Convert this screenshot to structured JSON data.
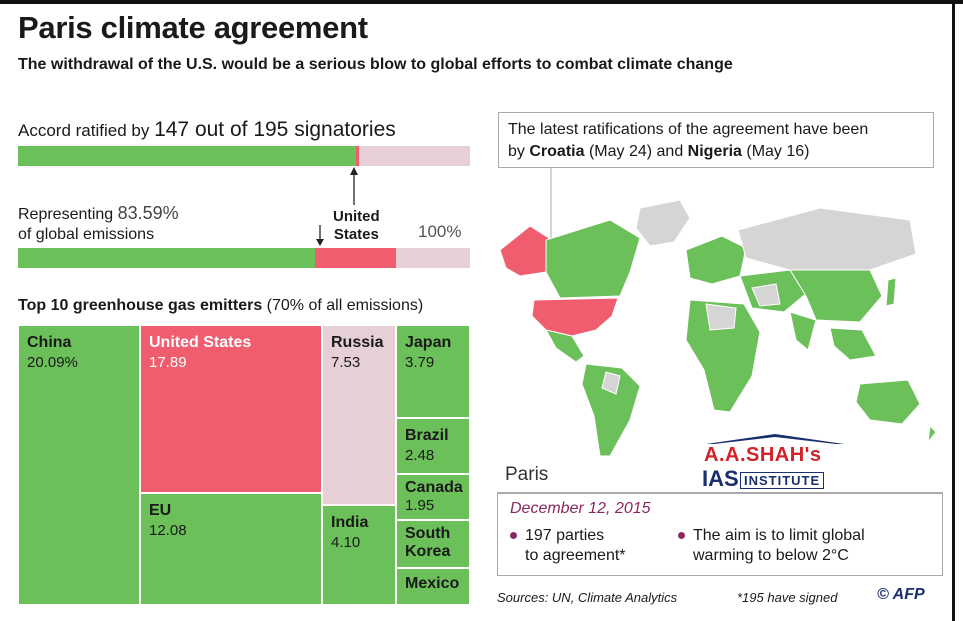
{
  "title": "Paris climate agreement",
  "subtitle": "The withdrawal of the U.S. would be a serious blow to global efforts to combat climate change",
  "accord": {
    "prefix": "Accord ratified by",
    "value": "147 out of 195 signatories",
    "ratified": 147,
    "total": 195
  },
  "emissions": {
    "label_line1": "Representing",
    "value": "83.59%",
    "label_line2": "of global emissions",
    "represented_pct": 83.59,
    "us_pct": 17.89,
    "us_label_line1": "United",
    "us_label_line2": "States",
    "full_label": "100%"
  },
  "top10": {
    "heading": "Top 10 greenhouse gas emitters",
    "heading_note": "(70% of all emissions)"
  },
  "chart_data": {
    "type": "treemap",
    "title": "Top 10 greenhouse gas emitters",
    "items": [
      {
        "name": "China",
        "label": "20.09%",
        "value": 20.09
      },
      {
        "name": "United States",
        "label": "17.89",
        "value": 17.89
      },
      {
        "name": "EU",
        "label": "12.08",
        "value": 12.08
      },
      {
        "name": "Russia",
        "label": "7.53",
        "value": 7.53
      },
      {
        "name": "India",
        "label": "4.10",
        "value": 4.1
      },
      {
        "name": "Japan",
        "label": "3.79",
        "value": 3.79
      },
      {
        "name": "Brazil",
        "label": "2.48",
        "value": 2.48
      },
      {
        "name": "Canada",
        "label": "1.95",
        "value": 1.95
      },
      {
        "name": "South Korea",
        "label": "",
        "value": null
      },
      {
        "name": "Mexico",
        "label": "",
        "value": null
      }
    ]
  },
  "callout": {
    "line1": "The latest ratifications of the agreement have been",
    "by": "by",
    "country1": "Croatia",
    "date1": "(May 24)",
    "and": "and",
    "country2": "Nigeria",
    "date2": "(May 16)"
  },
  "paris": {
    "label": "Paris",
    "date": "December 12, 2015",
    "bullet1_line1": "197 parties",
    "bullet1_line2": "to agreement*",
    "bullet2_line1": "The aim is to limit global",
    "bullet2_line2": "warming to below 2°C"
  },
  "footer": {
    "sources": "Sources: UN, Climate Analytics",
    "signed_note": "*195 have signed",
    "credit": "© AFP"
  },
  "watermark": {
    "line1": "A.A.SHAH's",
    "line2": "IAS",
    "line3": "INSTITUTE"
  },
  "colors": {
    "ratified": "#6cc05a",
    "united_states": "#ef5d6e",
    "not_ratified": "#e7d0d5",
    "not_signed": "#d5d5d5",
    "accent": "#8a2861"
  }
}
